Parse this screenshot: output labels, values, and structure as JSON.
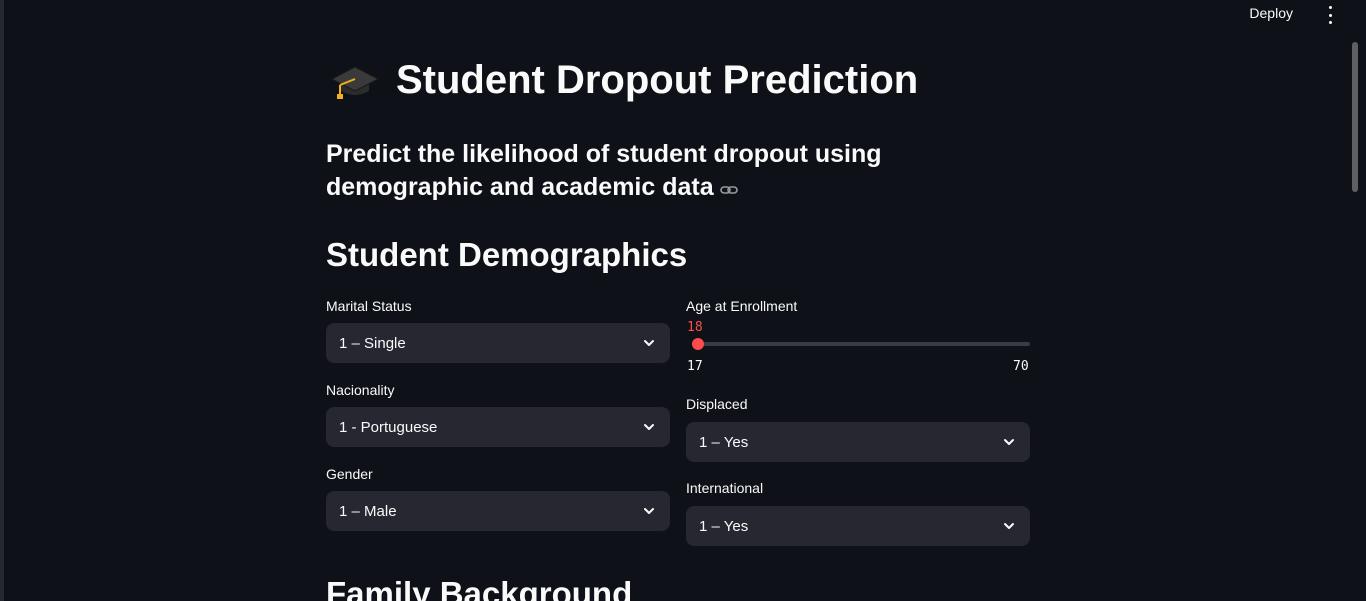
{
  "header": {
    "deploy_label": "Deploy",
    "menu_icon": "kebab-menu-icon"
  },
  "page": {
    "title": "Student Dropout Prediction",
    "title_icon": "graduation-cap-icon",
    "subtitle": "Predict the likelihood of student dropout using demographic and academic data",
    "link_icon": "link-icon"
  },
  "sections": {
    "demographics": "Student Demographics",
    "family": "Family Background"
  },
  "fields": {
    "marital_status": {
      "label": "Marital Status",
      "value": "1 – Single"
    },
    "nacionality": {
      "label": "Nacionality",
      "value": "1 - Portuguese"
    },
    "gender": {
      "label": "Gender",
      "value": "1 – Male"
    },
    "age": {
      "label": "Age at Enrollment",
      "value": "18",
      "min": "17",
      "max": "70",
      "level": 0.019
    },
    "displaced": {
      "label": "Displaced",
      "value": "1 – Yes"
    },
    "international": {
      "label": "International",
      "value": "1 – Yes"
    }
  },
  "colors": {
    "background": "#0e1117",
    "widget": "#262730",
    "accent": "#ff4b4b",
    "text": "#fafafa"
  }
}
